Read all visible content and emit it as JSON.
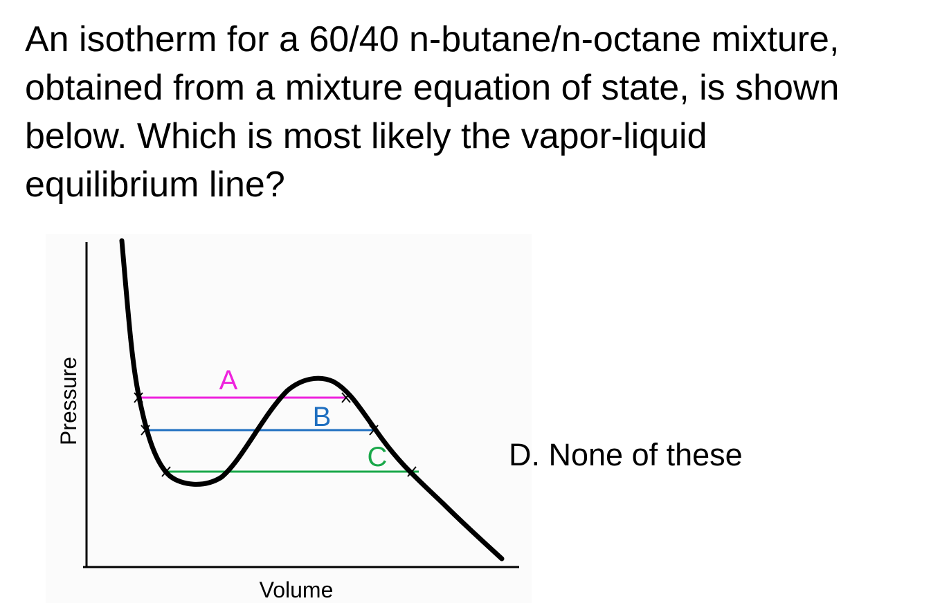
{
  "question": "An isotherm for a 60/40 n-butane/n-octane mixture, obtained from a mixture equation of state, is shown below. Which is most likely the vapor-liquid equilibrium line?",
  "diagram": {
    "y_axis_label": "Pressure",
    "x_axis_label": "Volume",
    "lines": [
      {
        "label": "A"
      },
      {
        "label": "B"
      },
      {
        "label": "C"
      }
    ]
  },
  "option": "D. None of these"
}
